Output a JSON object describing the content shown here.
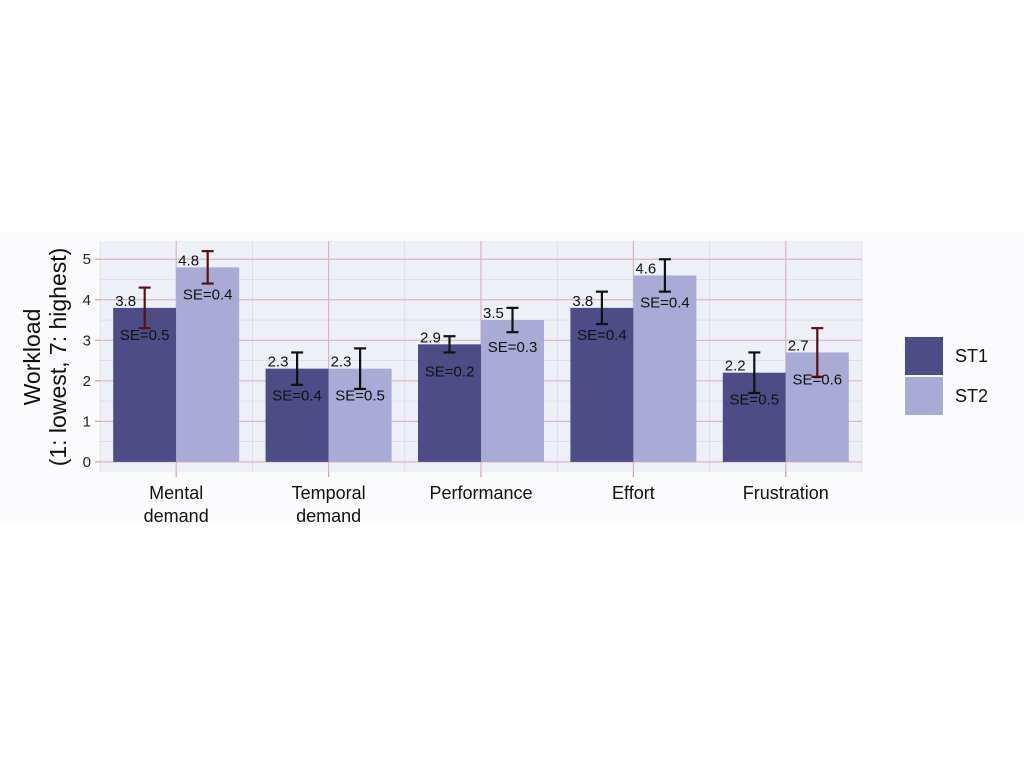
{
  "colors": {
    "panel_bg": "#eef0f8",
    "grid": "#d9b8bc",
    "axis": "#c9a3a7",
    "ST1": "#4d4c86",
    "ST2": "#aaaad6",
    "errorbar_dark": "#111111",
    "errorbar_red": "#5a1010"
  },
  "chart_data": {
    "type": "bar",
    "ylabel_lines": [
      "Workload",
      "(1: lowest, 7: highest)"
    ],
    "ylim": [
      -0.25,
      5.45
    ],
    "yticks": [
      "0",
      "1",
      "2",
      "3",
      "4",
      "5"
    ],
    "grid": true,
    "legend_position": "right",
    "categories": [
      [
        "Mental",
        "demand"
      ],
      [
        "Temporal",
        "demand"
      ],
      [
        "Performance"
      ],
      [
        "Effort"
      ],
      [
        "Frustration"
      ]
    ],
    "series": [
      {
        "name": "ST1",
        "values": [
          3.8,
          2.3,
          2.9,
          3.8,
          2.2
        ],
        "value_labels": [
          "3.8",
          "2.3",
          "2.9",
          "3.8",
          "2.2"
        ],
        "se": [
          0.5,
          0.4,
          0.2,
          0.4,
          0.5
        ],
        "se_labels": [
          "SE=0.5",
          "SE=0.4",
          "SE=0.2",
          "SE=0.4",
          "SE=0.5"
        ],
        "errorbar_color": [
          "red",
          "dark",
          "dark",
          "dark",
          "dark"
        ]
      },
      {
        "name": "ST2",
        "values": [
          4.8,
          2.3,
          3.5,
          4.6,
          2.7
        ],
        "value_labels": [
          "4.8",
          "2.3",
          "3.5",
          "4.6",
          "2.7"
        ],
        "se": [
          0.4,
          0.5,
          0.3,
          0.4,
          0.6
        ],
        "se_labels": [
          "SE=0.4",
          "SE=0.5",
          "SE=0.3",
          "SE=0.4",
          "SE=0.6"
        ],
        "errorbar_color": [
          "red",
          "dark",
          "dark",
          "dark",
          "red"
        ]
      }
    ]
  }
}
